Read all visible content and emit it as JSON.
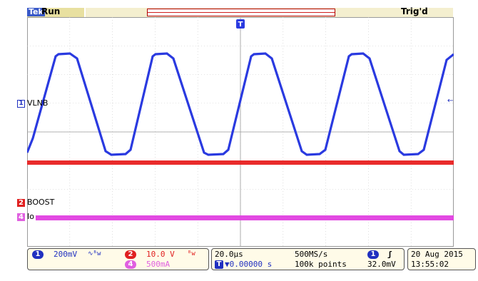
{
  "top": {
    "brand": "Tek",
    "acq_state": "Run",
    "trigger_status": "Trig'd",
    "trigger_marker": "T"
  },
  "channels": [
    {
      "id": "1",
      "name": "VLNB",
      "color": "#2030c0"
    },
    {
      "id": "2",
      "name": "BOOST",
      "color": "#e02020"
    },
    {
      "id": "4",
      "name": "Io",
      "color": "#e060e0"
    }
  ],
  "bottom": {
    "ch1_scale": "200mV",
    "ch1_coupling": "∿ᴮw",
    "ch2_scale": "10.0 V",
    "ch2_coupling": "ᴮw",
    "ch4_scale": "500mA",
    "timebase": "20.0µs",
    "sample_rate": "500MS/s",
    "trigger_position": "▼0.00000 s",
    "record_length": "100k points",
    "trigger_source": "1",
    "trigger_slope": "ʃ",
    "trigger_level": "32.0mV",
    "date": "20 Aug 2015",
    "time": "13:55:02"
  }
}
